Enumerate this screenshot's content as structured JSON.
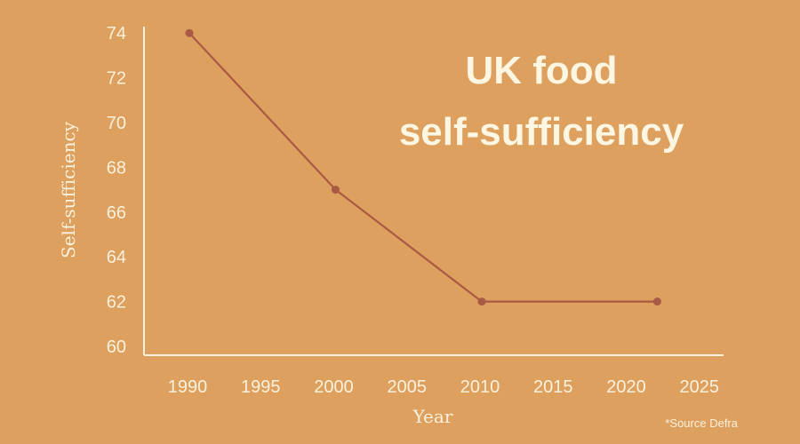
{
  "colors": {
    "background": "#DDA05E",
    "axis": "#FBF1DC",
    "text": "#FBF1DC",
    "line": "#A85A44",
    "point": "#A85A44"
  },
  "source_note": "*Source Defra",
  "chart_data": {
    "type": "line",
    "title_lines": [
      "UK food",
      "self-sufficiency"
    ],
    "xlabel": "Year",
    "ylabel": "Self-sufficiency",
    "xlim": [
      1987,
      2027
    ],
    "ylim": [
      60,
      75
    ],
    "xticks": [
      1990,
      1995,
      2000,
      2005,
      2010,
      2015,
      2020,
      2025
    ],
    "yticks": [
      60,
      62,
      64,
      66,
      68,
      70,
      72,
      74
    ],
    "grid": false,
    "x": [
      1990,
      2000,
      2010,
      2022
    ],
    "y": [
      74,
      67,
      62,
      62
    ]
  }
}
